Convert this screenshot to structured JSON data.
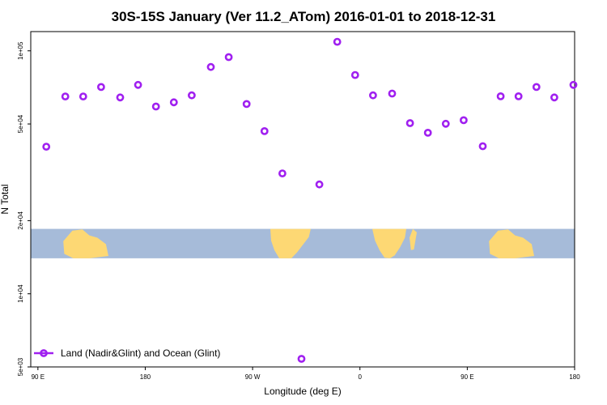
{
  "chart_data": {
    "type": "scatter",
    "title": "30S-15S January (Ver 11.2_ATom)   2016-01-01 to 2018-12-31",
    "xlabel": "Longitude (deg E)",
    "ylabel": "N Total",
    "y_scale": "log",
    "x_ticks": [
      {
        "pos": 0,
        "label": "90 E"
      },
      {
        "pos": 9,
        "label": "180"
      },
      {
        "pos": 18,
        "label": "90 W"
      },
      {
        "pos": 27,
        "label": "0"
      },
      {
        "pos": 36,
        "label": "90 E"
      },
      {
        "pos": 45,
        "label": "180"
      }
    ],
    "y_ticks": [
      {
        "value": 5000,
        "label": "5e+03"
      },
      {
        "value": 10000,
        "label": "1e+04"
      },
      {
        "value": 20000,
        "label": "2e+04"
      },
      {
        "value": 50000,
        "label": "5e+04"
      },
      {
        "value": 100000,
        "label": "1e+05"
      }
    ],
    "xlim": [
      -0.6,
      45
    ],
    "ylim": [
      5000,
      120000
    ],
    "map_band": {
      "y_top": 18500,
      "y_bottom": 14000
    },
    "series": [
      {
        "name": "Land (Nadir&Glint) and Ocean (Glint)",
        "color": "#a020f0",
        "x": [
          0.7,
          2.3,
          3.8,
          5.3,
          6.9,
          8.4,
          9.9,
          11.4,
          12.9,
          14.5,
          16.0,
          17.5,
          19.0,
          20.5,
          22.1,
          23.6,
          25.1,
          26.6,
          28.1,
          29.7,
          31.2,
          32.7,
          34.2,
          35.7,
          37.3,
          38.8,
          40.3,
          41.8,
          43.3,
          44.9
        ],
        "y": [
          40300,
          64900,
          64900,
          71000,
          64300,
          72400,
          59000,
          61400,
          65600,
          85800,
          94200,
          60400,
          46700,
          31300,
          5400,
          28200,
          108900,
          79500,
          65600,
          66700,
          50400,
          46000,
          50100,
          51800,
          40500,
          65000,
          65000,
          71000,
          64300,
          72400
        ]
      }
    ],
    "legend": {
      "position": "bottom-left"
    }
  },
  "colors": {
    "ocean": "#a6bbd9",
    "land": "#fdd874",
    "marker": "#a020f0"
  }
}
